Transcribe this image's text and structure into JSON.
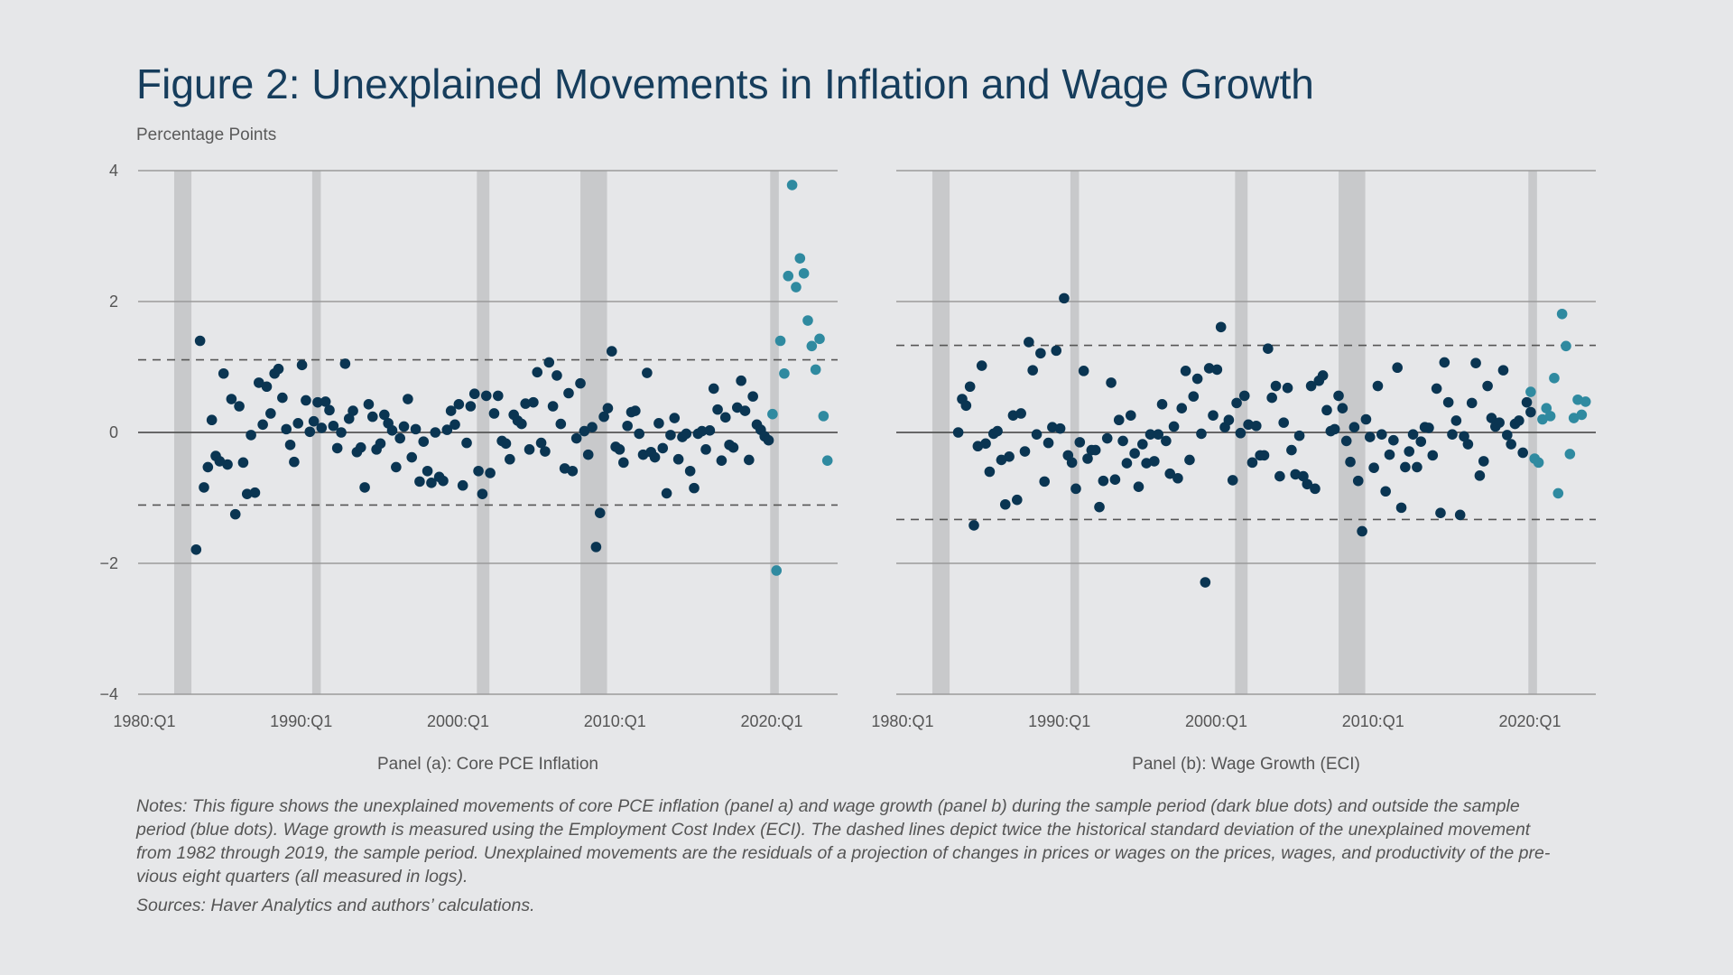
{
  "title": "Figure 2: Unexplained Movements in Inflation and Wage Growth",
  "y_unit_label": "Percentage Points",
  "colors": {
    "background": "#e6e7e9",
    "in_sample_dots": "#0a3552",
    "out_of_sample_dots": "#2f8aa0",
    "recession_shading": "#c8c9cb",
    "gridline": "#9b9b9b",
    "zero_line": "#555555",
    "dashed_band": "#555555"
  },
  "notes_lines": [
    "Notes: This figure shows the unexplained movements of core PCE inflation (panel a) and wage growth (panel b) during the sample period (dark blue dots) and outside the sample",
    "period (blue dots). Wage growth is measured using the Employment Cost Index (ECI). The dashed lines depict twice the historical standard deviation of the unexplained movement",
    "from 1982 through 2019, the sample period. Unexplained movements are the residuals of a projection of changes in prices or wages on the prices, wages, and productivity of the pre-",
    "vious eight quarters (all measured in logs)."
  ],
  "sources": "Sources: Haver Analytics and authors’ calculations.",
  "chart_data": [
    {
      "type": "scatter",
      "title": "Panel (a): Core PCE Inflation",
      "ylabel": "Percentage Points",
      "ylim": [
        -4,
        4
      ],
      "yticks": [
        4,
        2,
        0,
        -2,
        -4
      ],
      "ytick_labels": [
        "4",
        "2",
        "0",
        "−2",
        "−4"
      ],
      "xlim": [
        1979.6,
        2024.2
      ],
      "xticks": [
        1980,
        1990,
        2000,
        2010,
        2020
      ],
      "xtick_labels": [
        "1980:Q1",
        "1990:Q1",
        "2000:Q1",
        "2010:Q1",
        "2020:Q1"
      ],
      "grid": true,
      "band": 1.11,
      "recessions": [
        [
          1981.9,
          1983.0
        ],
        [
          1990.7,
          1991.25
        ],
        [
          2001.2,
          2002.0
        ],
        [
          2007.8,
          2009.5
        ],
        [
          2019.9,
          2020.45
        ]
      ],
      "series": [
        {
          "sample": "in",
          "start": "1983:Q2",
          "frequency": "quarterly",
          "values": [
            -1.79,
            1.4,
            -0.84,
            -0.53,
            0.19,
            -0.36,
            -0.44,
            0.9,
            -0.49,
            0.51,
            -1.25,
            0.4,
            -0.46,
            -0.94,
            -0.04,
            -0.92,
            0.76,
            0.12,
            0.7,
            0.29,
            0.9,
            0.97,
            0.53,
            0.05,
            -0.19,
            -0.45,
            0.14,
            1.03,
            0.49,
            0.01,
            0.17,
            0.46,
            0.07,
            0.47,
            0.34,
            0.1,
            -0.24,
            0.0,
            1.05,
            0.21,
            0.33,
            -0.3,
            -0.23,
            -0.84,
            0.43,
            0.24,
            -0.26,
            -0.17,
            0.27,
            0.14,
            0.03,
            -0.53,
            -0.09,
            0.09,
            0.51,
            -0.38,
            0.05,
            -0.75,
            -0.14,
            -0.59,
            -0.77,
            0.0,
            -0.68,
            -0.74,
            0.04,
            0.33,
            0.12,
            0.43,
            -0.81,
            -0.16,
            0.4,
            0.59,
            -0.59,
            -0.94,
            0.56,
            -0.62,
            0.29,
            0.56,
            -0.13,
            -0.17,
            -0.41,
            0.27,
            0.18,
            0.13,
            0.44,
            -0.26,
            0.46,
            0.92,
            -0.16,
            -0.29,
            1.07,
            0.4,
            0.87,
            0.13,
            -0.55,
            0.6,
            -0.59,
            -0.09,
            0.75,
            0.02,
            -0.34,
            0.08,
            -1.75,
            -1.23,
            0.24,
            0.37,
            1.24,
            -0.22,
            -0.26,
            -0.46,
            0.1,
            0.31,
            0.33,
            -0.02,
            -0.34,
            0.91,
            -0.3,
            -0.38,
            0.14,
            -0.24,
            -0.93,
            -0.04,
            0.22,
            -0.41,
            -0.07,
            -0.02,
            -0.59,
            -0.85,
            -0.02,
            0.02,
            -0.26,
            0.03,
            0.67,
            0.35,
            -0.43,
            0.23,
            -0.19,
            -0.23,
            0.38,
            0.79,
            0.33,
            -0.42,
            0.55,
            0.12,
            0.04,
            -0.06,
            -0.12
          ]
        },
        {
          "sample": "out",
          "start": "2020:Q1",
          "frequency": "quarterly",
          "values": [
            0.28,
            -2.11,
            1.4,
            0.9,
            2.39,
            3.78,
            2.22,
            2.66,
            2.43,
            1.71,
            1.32,
            0.96,
            1.43,
            0.25,
            -0.43
          ]
        }
      ]
    },
    {
      "type": "scatter",
      "title": "Panel (b): Wage Growth (ECI)",
      "ylim": [
        -4,
        4
      ],
      "yticks": [
        4,
        2,
        0,
        -2,
        -4
      ],
      "xlim": [
        1979.6,
        2024.2
      ],
      "xticks": [
        1980,
        1990,
        2000,
        2010,
        2020
      ],
      "xtick_labels": [
        "1980:Q1",
        "1990:Q1",
        "2000:Q1",
        "2010:Q1",
        "2020:Q1"
      ],
      "grid": true,
      "band": 1.33,
      "recessions": [
        [
          1981.9,
          1983.0
        ],
        [
          1990.7,
          1991.25
        ],
        [
          2001.2,
          2002.0
        ],
        [
          2007.8,
          2009.5
        ],
        [
          2019.9,
          2020.45
        ]
      ],
      "series": [
        {
          "sample": "in",
          "start": "1983:Q3",
          "frequency": "quarterly",
          "values": [
            0.0,
            0.51,
            0.41,
            0.7,
            -1.42,
            -0.21,
            1.02,
            -0.17,
            -0.6,
            -0.02,
            0.02,
            -0.42,
            -1.1,
            -0.37,
            0.26,
            -1.03,
            0.29,
            -0.29,
            1.38,
            0.95,
            -0.03,
            1.21,
            -0.75,
            -0.16,
            0.08,
            1.25,
            0.06,
            2.05,
            -0.35,
            -0.46,
            -0.86,
            -0.15,
            0.94,
            -0.4,
            -0.27,
            -0.27,
            -1.14,
            -0.74,
            -0.09,
            0.76,
            -0.72,
            0.19,
            -0.13,
            -0.47,
            0.26,
            -0.32,
            -0.83,
            -0.18,
            -0.47,
            -0.03,
            -0.44,
            -0.03,
            0.43,
            -0.13,
            -0.63,
            0.09,
            -0.7,
            0.37,
            0.94,
            -0.42,
            0.55,
            0.82,
            -0.02,
            -2.29,
            0.98,
            0.26,
            0.96,
            1.61,
            0.08,
            0.19,
            -0.73,
            0.45,
            -0.01,
            0.56,
            0.12,
            -0.46,
            0.1,
            -0.35,
            -0.35,
            1.28,
            0.53,
            0.71,
            -0.67,
            0.15,
            0.68,
            -0.27,
            -0.64,
            -0.05,
            -0.67,
            -0.79,
            0.71,
            -0.86,
            0.79,
            0.87,
            0.34,
            0.02,
            0.05,
            0.56,
            0.37,
            -0.13,
            -0.45,
            0.08,
            -0.74,
            -1.51,
            0.2,
            -0.07,
            -0.54,
            0.71,
            -0.03,
            -0.9,
            -0.34,
            -0.12,
            0.99,
            -1.15,
            -0.53,
            -0.29,
            -0.03,
            -0.53,
            -0.14,
            0.08,
            0.07,
            -0.35,
            0.67,
            -1.23,
            1.07,
            0.46,
            -0.03,
            0.18,
            -1.26,
            -0.06,
            -0.18,
            0.45,
            1.06,
            -0.66,
            -0.44,
            0.71,
            0.22,
            0.09,
            0.15,
            0.95,
            -0.04,
            -0.18,
            0.13,
            0.18,
            -0.31,
            0.46,
            0.31
          ]
        },
        {
          "sample": "out",
          "start": "2020:Q1",
          "frequency": "quarterly",
          "values": [
            0.62,
            -0.4,
            -0.46,
            0.2,
            0.37,
            0.25,
            0.83,
            -0.93,
            1.81,
            1.32,
            -0.33,
            0.22,
            0.5,
            0.27,
            0.47
          ]
        }
      ]
    }
  ]
}
